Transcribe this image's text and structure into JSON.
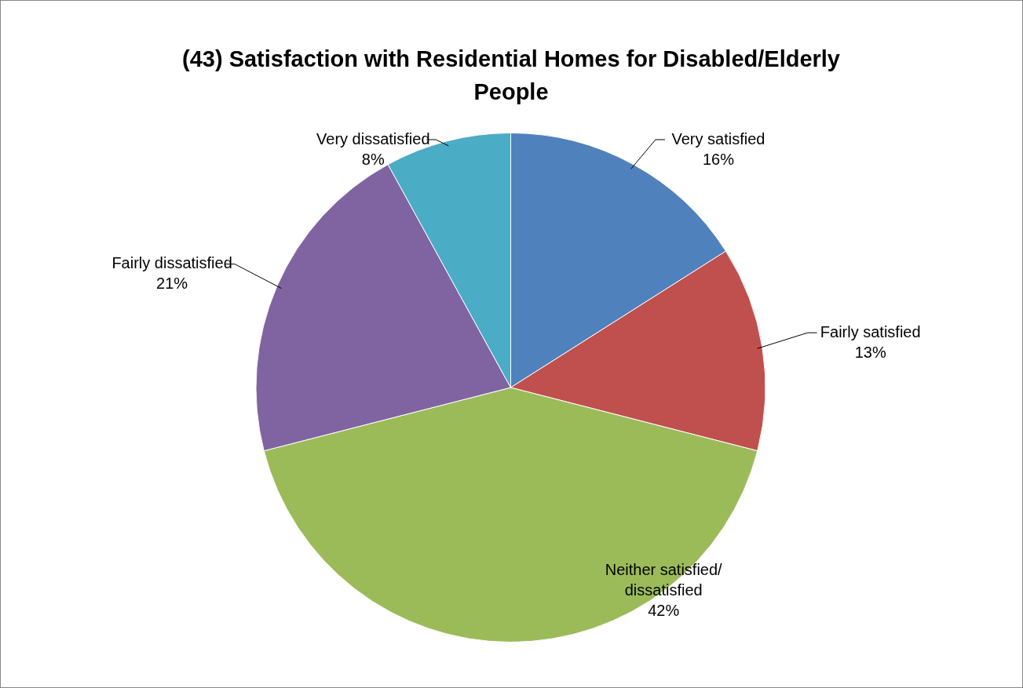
{
  "chart_data": {
    "type": "pie",
    "title": "(43) Satisfaction with Residential Homes for Disabled/Elderly People",
    "categories": [
      "Very satisfied",
      "Fairly satisfied",
      "Neither satisfied/ dissatisfied",
      "Fairly dissatisfied",
      "Very dissatisfied"
    ],
    "values": [
      16,
      13,
      42,
      21,
      8
    ],
    "colors": [
      "#4f81bd",
      "#c0504d",
      "#9bbb59",
      "#8064a2",
      "#4bacc6"
    ],
    "value_labels": [
      "16%",
      "13%",
      "42%",
      "21%",
      "8%"
    ],
    "legend": false
  }
}
